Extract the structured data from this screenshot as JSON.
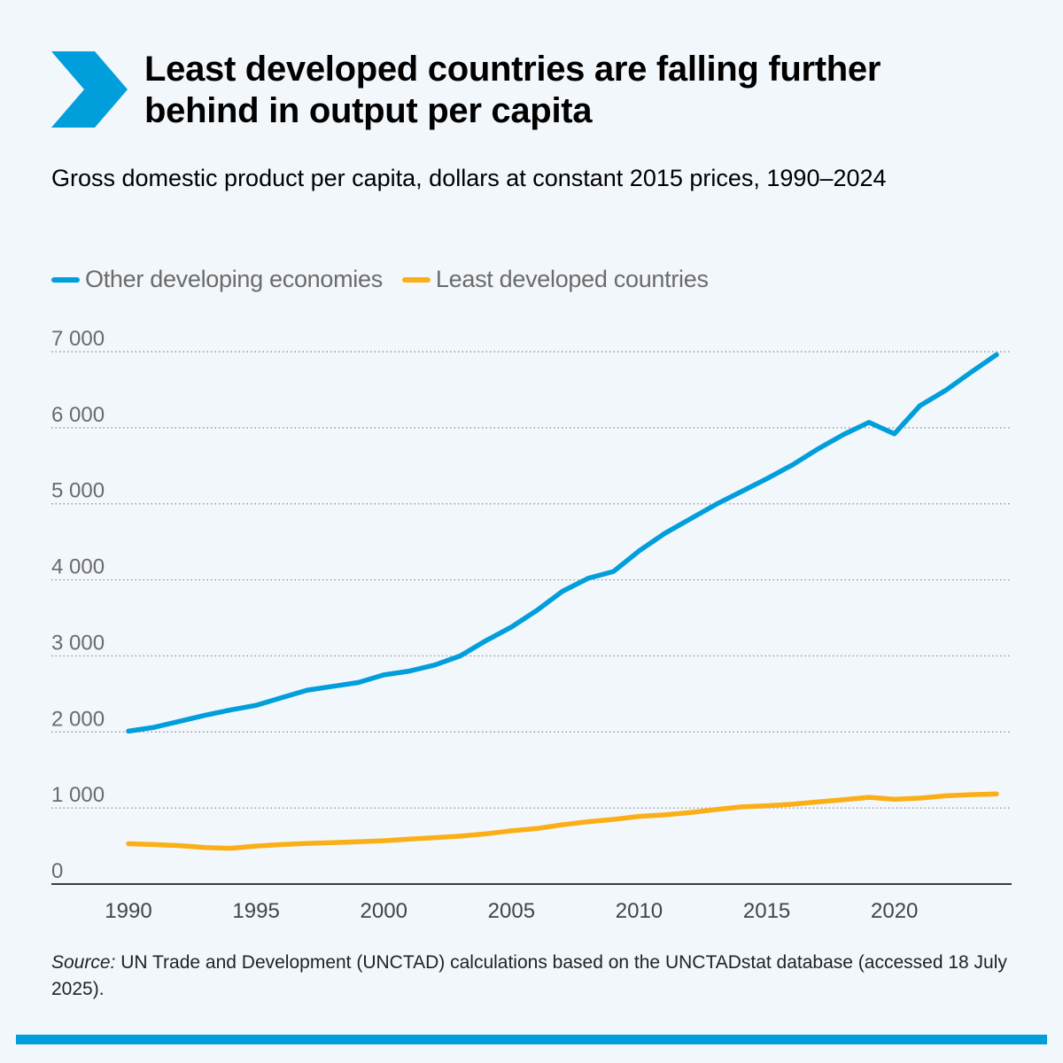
{
  "header": {
    "title": "Least developed countries are falling further behind in output per capita",
    "accent_color": "#009edb"
  },
  "chart_data": {
    "type": "line",
    "title": "Least developed countries are falling further behind in output per capita",
    "subtitle": "Gross domestic product per capita, dollars at constant 2015 prices, 1990–2024",
    "xlabel": "",
    "ylabel": "",
    "x": [
      1990,
      1991,
      1992,
      1993,
      1994,
      1995,
      1996,
      1997,
      1998,
      1999,
      2000,
      2001,
      2002,
      2003,
      2004,
      2005,
      2006,
      2007,
      2008,
      2009,
      2010,
      2011,
      2012,
      2013,
      2014,
      2015,
      2016,
      2017,
      2018,
      2019,
      2020,
      2021,
      2022,
      2023,
      2024
    ],
    "series": [
      {
        "name": "Other developing economies",
        "color": "#009edb",
        "values": [
          2010,
          2060,
          2140,
          2220,
          2290,
          2350,
          2450,
          2550,
          2600,
          2650,
          2750,
          2800,
          2880,
          3000,
          3200,
          3380,
          3600,
          3850,
          4020,
          4110,
          4380,
          4610,
          4800,
          4990,
          5160,
          5330,
          5510,
          5720,
          5910,
          6070,
          5920,
          6290,
          6490,
          6730,
          6960
        ]
      },
      {
        "name": "Least developed countries",
        "color": "#fbaf17",
        "values": [
          530,
          520,
          505,
          480,
          470,
          500,
          520,
          535,
          545,
          555,
          570,
          590,
          610,
          630,
          660,
          700,
          730,
          780,
          820,
          850,
          890,
          910,
          940,
          980,
          1015,
          1030,
          1050,
          1080,
          1110,
          1140,
          1115,
          1130,
          1160,
          1175,
          1185
        ]
      }
    ],
    "ylim": [
      0,
      7000
    ],
    "yticks": [
      {
        "value": 0,
        "label": "0"
      },
      {
        "value": 1000,
        "label": "1 000"
      },
      {
        "value": 2000,
        "label": "2 000"
      },
      {
        "value": 3000,
        "label": "3 000"
      },
      {
        "value": 4000,
        "label": "4 000"
      },
      {
        "value": 5000,
        "label": "5 000"
      },
      {
        "value": 6000,
        "label": "6 000"
      },
      {
        "value": 7000,
        "label": "7 000"
      }
    ],
    "xticks": [
      {
        "value": 1990,
        "label": "1990"
      },
      {
        "value": 1995,
        "label": "1995"
      },
      {
        "value": 2000,
        "label": "2000"
      },
      {
        "value": 2005,
        "label": "2005"
      },
      {
        "value": 2010,
        "label": "2010"
      },
      {
        "value": 2015,
        "label": "2015"
      },
      {
        "value": 2020,
        "label": "2020"
      }
    ],
    "grid": true,
    "grid_style": "dotted horizontal",
    "legend_position": "top-left"
  },
  "source": {
    "label": "Source:",
    "text": " UN Trade and Development (UNCTAD) calculations based on the UNCTADstat database (accessed 18 July 2025)."
  }
}
